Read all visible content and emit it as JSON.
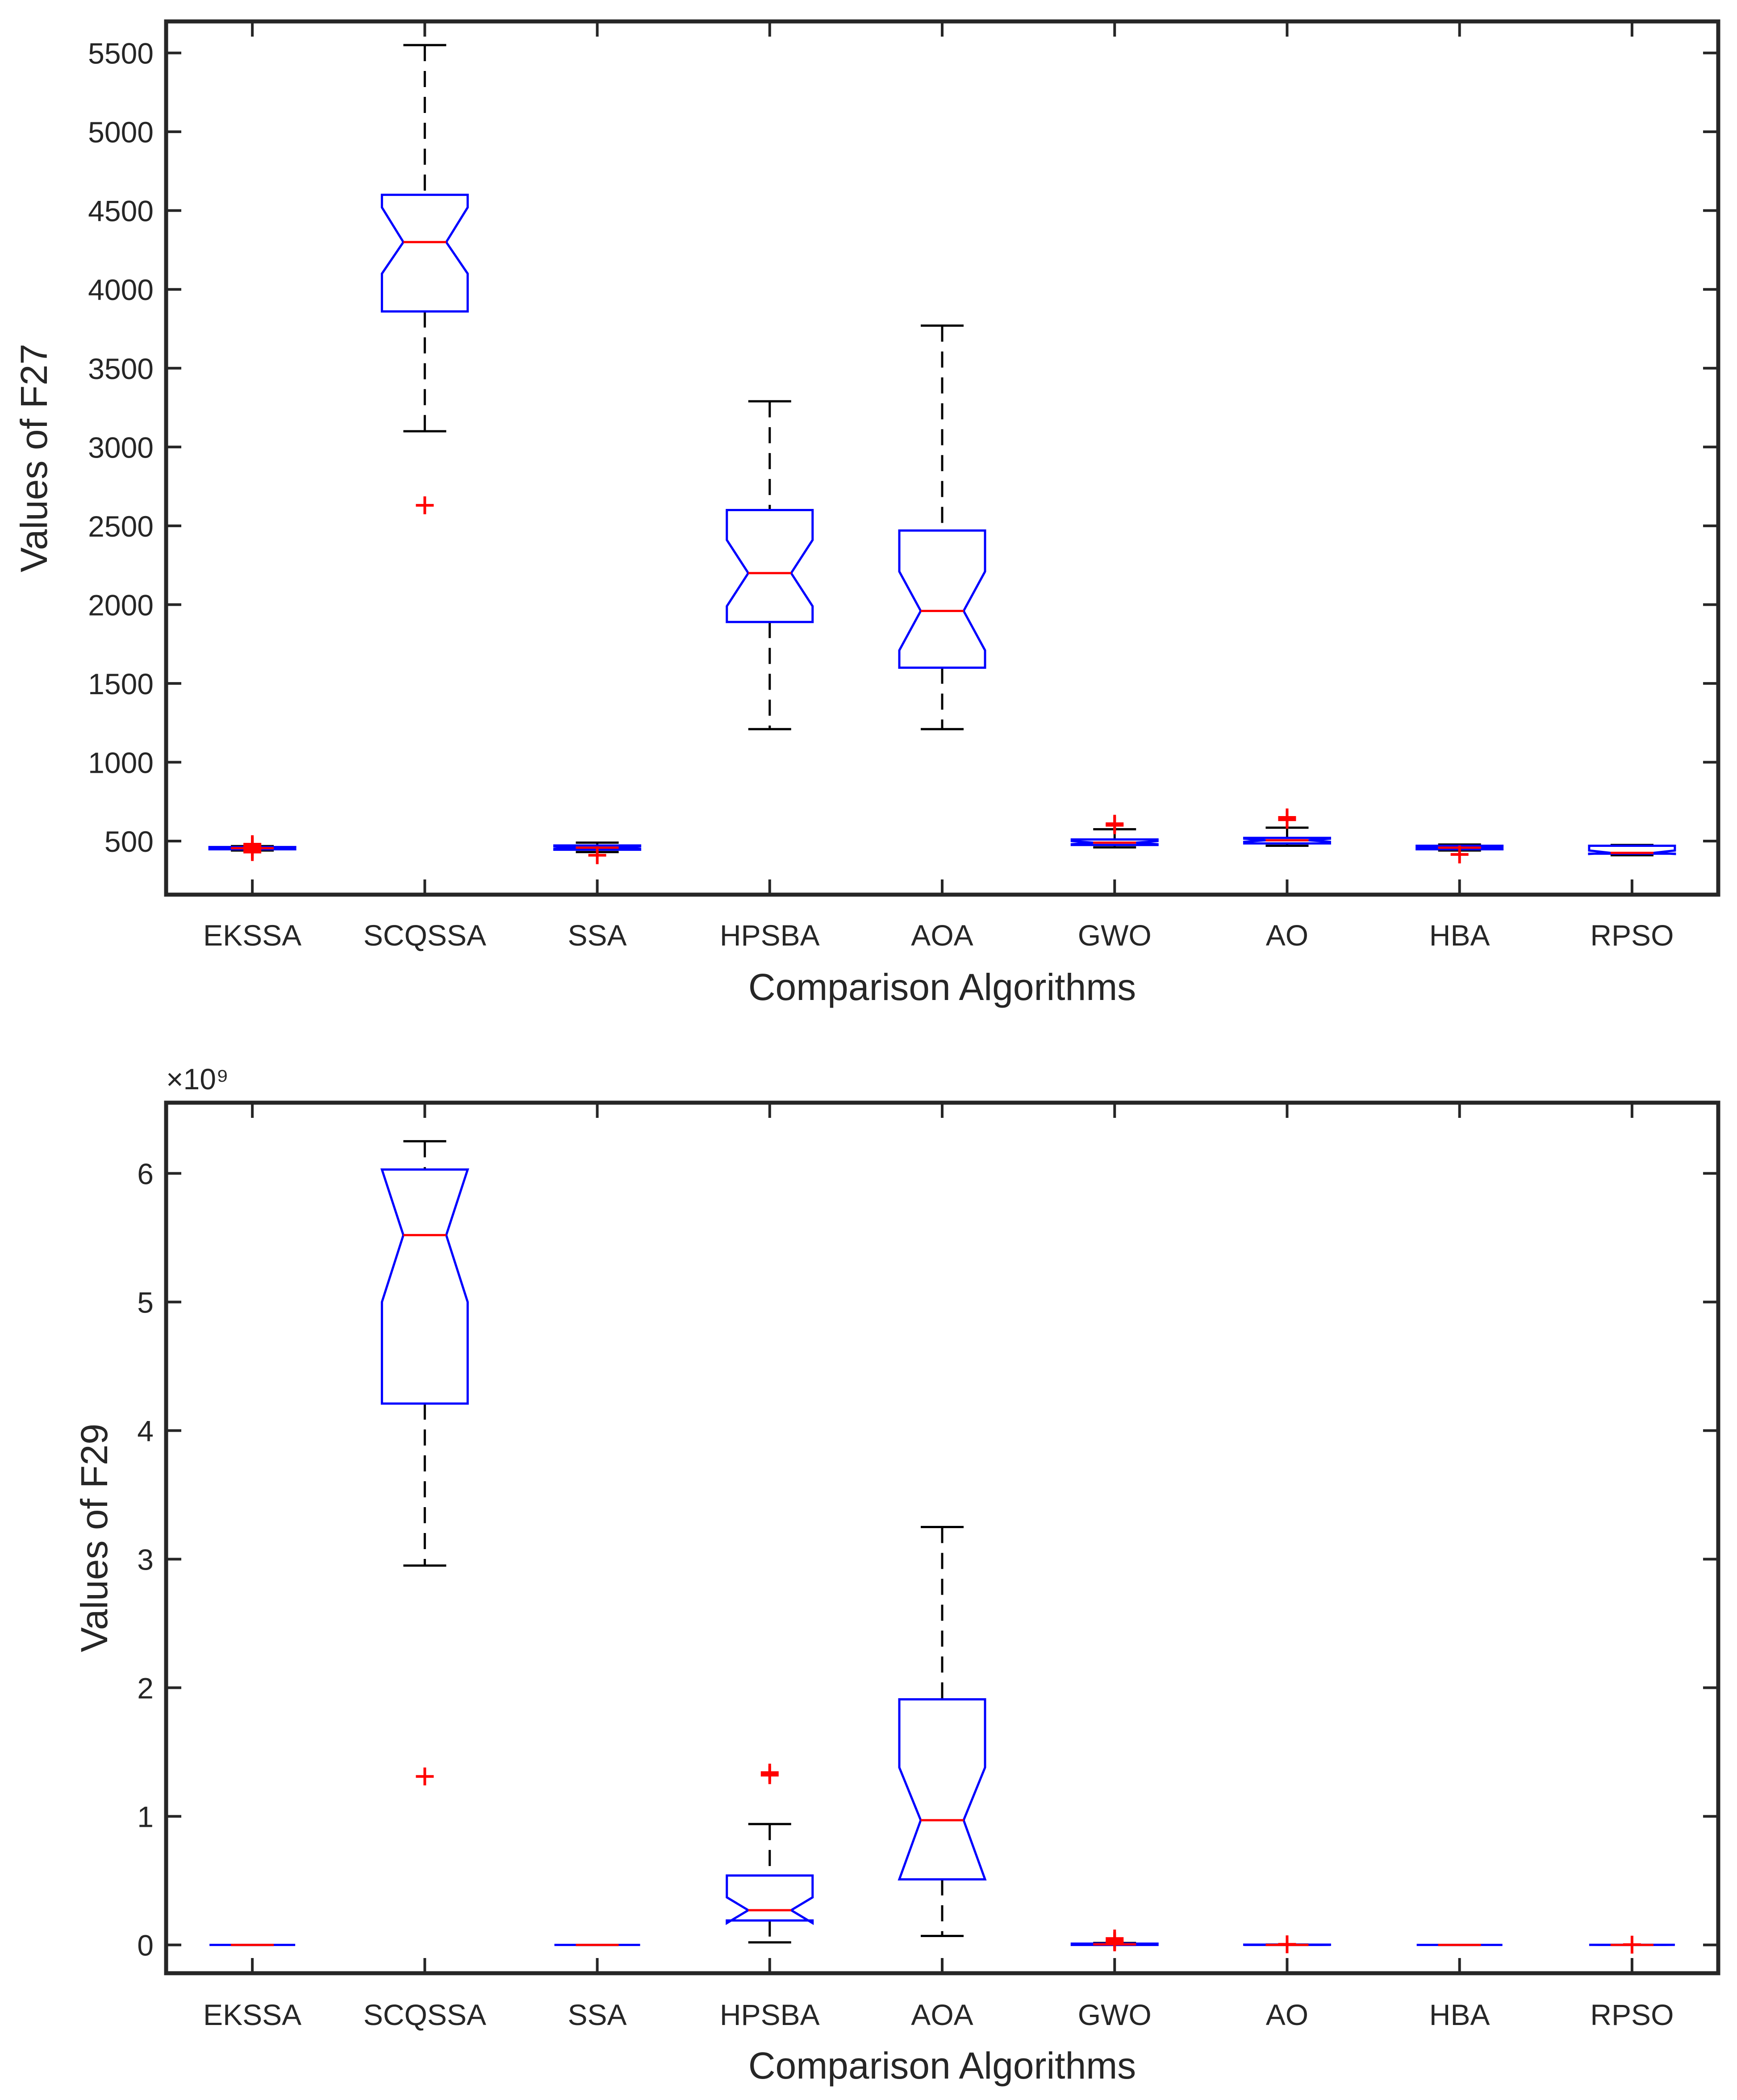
{
  "chart_data": [
    {
      "type": "boxplot",
      "title": "",
      "xlabel": "Comparison Algorithms",
      "ylabel": "Values of F27",
      "exponent_label": "",
      "categories": [
        "EKSSA",
        "SCQSSA",
        "SSA",
        "HPSBA",
        "AOA",
        "GWO",
        "AO",
        "HBA",
        "RPSO"
      ],
      "ylim": [
        160,
        5700
      ],
      "yticks": [
        500,
        1000,
        1500,
        2000,
        2500,
        3000,
        3500,
        4000,
        4500,
        5000,
        5500
      ],
      "ytick_labels": [
        "500",
        "1000",
        "1500",
        "2000",
        "2500",
        "3000",
        "3500",
        "4000",
        "4500",
        "5000",
        "5500"
      ],
      "boxes": [
        {
          "name": "EKSSA",
          "whisker_low": 440,
          "q1": 448,
          "median": 455,
          "q3": 462,
          "whisker_high": 468,
          "notch_low": 452,
          "notch_high": 458,
          "outliers": [
            430,
            470,
            480,
            462,
            445
          ]
        },
        {
          "name": "SCQSSA",
          "whisker_low": 3100,
          "q1": 3860,
          "median": 4300,
          "q3": 4600,
          "whisker_high": 5550,
          "notch_low": 4100,
          "notch_high": 4520,
          "outliers": [
            2630
          ]
        },
        {
          "name": "SSA",
          "whisker_low": 430,
          "q1": 445,
          "median": 458,
          "q3": 472,
          "whisker_high": 490,
          "notch_low": 450,
          "notch_high": 466,
          "outliers": [
            410
          ]
        },
        {
          "name": "HPSBA",
          "whisker_low": 1210,
          "q1": 1890,
          "median": 2200,
          "q3": 2600,
          "whisker_high": 3290,
          "notch_low": 1990,
          "notch_high": 2410,
          "outliers": []
        },
        {
          "name": "AOA",
          "whisker_low": 1210,
          "q1": 1600,
          "median": 1960,
          "q3": 2470,
          "whisker_high": 3770,
          "notch_low": 1710,
          "notch_high": 2210,
          "outliers": []
        },
        {
          "name": "GWO",
          "whisker_low": 460,
          "q1": 475,
          "median": 490,
          "q3": 510,
          "whisker_high": 575,
          "notch_low": 480,
          "notch_high": 500,
          "outliers": [
            600,
            610
          ]
        },
        {
          "name": "AO",
          "whisker_low": 470,
          "q1": 485,
          "median": 505,
          "q3": 520,
          "whisker_high": 585,
          "notch_low": 495,
          "notch_high": 515,
          "outliers": [
            635,
            650
          ]
        },
        {
          "name": "HBA",
          "whisker_low": 440,
          "q1": 448,
          "median": 458,
          "q3": 470,
          "whisker_high": 478,
          "notch_low": 453,
          "notch_high": 463,
          "outliers": [
            415
          ]
        },
        {
          "name": "RPSO",
          "whisker_low": 410,
          "q1": 420,
          "median": 425,
          "q3": 470,
          "whisker_high": 475,
          "notch_low": 418,
          "notch_high": 440,
          "outliers": []
        }
      ]
    },
    {
      "type": "boxplot",
      "title": "",
      "xlabel": "Comparison Algorithms",
      "ylabel": "Values of F29",
      "exponent_label": "×10⁹",
      "categories": [
        "EKSSA",
        "SCQSSA",
        "SSA",
        "HPSBA",
        "AOA",
        "GWO",
        "AO",
        "HBA",
        "RPSO"
      ],
      "ylim": [
        -0.22,
        6.55
      ],
      "yticks": [
        0,
        1,
        2,
        3,
        4,
        5,
        6
      ],
      "ytick_labels": [
        "0",
        "1",
        "2",
        "3",
        "4",
        "5",
        "6"
      ],
      "boxes": [
        {
          "name": "EKSSA",
          "whisker_low": 0,
          "q1": 0,
          "median": 0,
          "q3": 0,
          "whisker_high": 0,
          "notch_low": 0,
          "notch_high": 0,
          "outliers": []
        },
        {
          "name": "SCQSSA",
          "whisker_low": 2.95,
          "q1": 4.21,
          "median": 5.52,
          "q3": 6.03,
          "whisker_high": 6.25,
          "notch_low": 5.0,
          "notch_high": 6.03,
          "outliers": [
            1.31
          ]
        },
        {
          "name": "SSA",
          "whisker_low": 0,
          "q1": 0,
          "median": 0,
          "q3": 0,
          "whisker_high": 0,
          "notch_low": 0,
          "notch_high": 0,
          "outliers": []
        },
        {
          "name": "HPSBA",
          "whisker_low": 0.02,
          "q1": 0.19,
          "median": 0.27,
          "q3": 0.54,
          "whisker_high": 0.94,
          "notch_low": 0.17,
          "notch_high": 0.37,
          "outliers": [
            1.32,
            1.34
          ]
        },
        {
          "name": "AOA",
          "whisker_low": 0.07,
          "q1": 0.51,
          "median": 0.97,
          "q3": 1.91,
          "whisker_high": 3.25,
          "notch_low": 0.51,
          "notch_high": 1.38,
          "outliers": []
        },
        {
          "name": "GWO",
          "whisker_low": 0,
          "q1": 0,
          "median": 0.005,
          "q3": 0.01,
          "whisker_high": 0.015,
          "notch_low": 0.003,
          "notch_high": 0.008,
          "outliers": [
            0.03,
            0.05,
            0.02
          ]
        },
        {
          "name": "AO",
          "whisker_low": 0,
          "q1": 0,
          "median": 0,
          "q3": 0.002,
          "whisker_high": 0.003,
          "notch_low": 0,
          "notch_high": 0.001,
          "outliers": [
            0.005
          ]
        },
        {
          "name": "HBA",
          "whisker_low": 0,
          "q1": 0,
          "median": 0,
          "q3": 0,
          "whisker_high": 0,
          "notch_low": 0,
          "notch_high": 0,
          "outliers": []
        },
        {
          "name": "RPSO",
          "whisker_low": 0,
          "q1": 0,
          "median": 0,
          "q3": 0.001,
          "whisker_high": 0.001,
          "notch_low": 0,
          "notch_high": 0.001,
          "outliers": [
            0.002
          ]
        }
      ]
    }
  ],
  "colors": {
    "box": "#0000ff",
    "median": "#ff0000",
    "outlier": "#ff0000",
    "whisker": "#000000",
    "axis": "#262626"
  }
}
